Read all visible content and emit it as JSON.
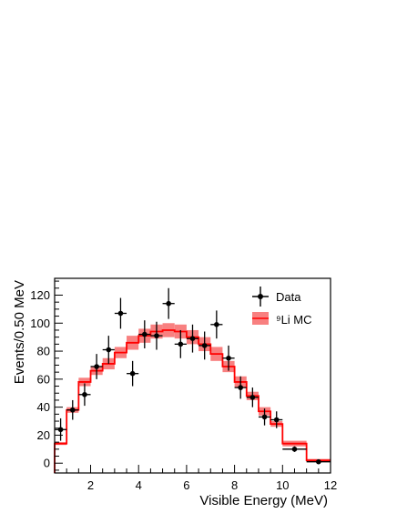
{
  "chart_data": {
    "type": "scatter",
    "xlabel": "Visible Energy (MeV)",
    "ylabel": "Events/0.50 MeV",
    "xlim": [
      0.5,
      12
    ],
    "ylim": [
      -7,
      132
    ],
    "xticks": [
      "2",
      "4",
      "6",
      "8",
      "10",
      "12"
    ],
    "yticks": [
      "0",
      "20",
      "40",
      "60",
      "80",
      "100",
      "120"
    ],
    "xtick_values": [
      2,
      4,
      6,
      8,
      10,
      12
    ],
    "ytick_values": [
      0,
      20,
      40,
      60,
      80,
      100,
      120
    ],
    "legend_position": "top-right",
    "data_series": {
      "name": "Data",
      "color": "#000000",
      "points": [
        {
          "x": 0.75,
          "y": 24,
          "err": 8
        },
        {
          "x": 1.25,
          "y": 38,
          "err": 7
        },
        {
          "x": 1.75,
          "y": 49,
          "err": 8
        },
        {
          "x": 2.25,
          "y": 69,
          "err": 9
        },
        {
          "x": 2.75,
          "y": 81,
          "err": 10
        },
        {
          "x": 3.25,
          "y": 107,
          "err": 11
        },
        {
          "x": 3.75,
          "y": 64,
          "err": 9
        },
        {
          "x": 4.25,
          "y": 92,
          "err": 10
        },
        {
          "x": 4.75,
          "y": 91,
          "err": 10
        },
        {
          "x": 5.25,
          "y": 114,
          "err": 11
        },
        {
          "x": 5.75,
          "y": 85,
          "err": 10
        },
        {
          "x": 6.25,
          "y": 89,
          "err": 10
        },
        {
          "x": 6.75,
          "y": 84,
          "err": 10
        },
        {
          "x": 7.25,
          "y": 99,
          "err": 10
        },
        {
          "x": 7.75,
          "y": 75,
          "err": 9
        },
        {
          "x": 8.25,
          "y": 54,
          "err": 8
        },
        {
          "x": 8.75,
          "y": 47,
          "err": 7
        },
        {
          "x": 9.25,
          "y": 33,
          "err": 6
        },
        {
          "x": 9.75,
          "y": 31,
          "err": 6
        },
        {
          "x": 10.5,
          "y": 10,
          "err": 2,
          "xerr": 0.5
        },
        {
          "x": 11.5,
          "y": 1,
          "err": 1,
          "xerr": 0.5
        }
      ]
    },
    "mc_series": {
      "name": "⁹Li MC",
      "line_color": "#ff0000",
      "band_color": "#f88080",
      "bins": [
        {
          "x0": 0.5,
          "x1": 1.0,
          "y": 14,
          "err": 1
        },
        {
          "x0": 1.0,
          "x1": 1.5,
          "y": 38,
          "err": 2
        },
        {
          "x0": 1.5,
          "x1": 2.0,
          "y": 58,
          "err": 3
        },
        {
          "x0": 2.0,
          "x1": 2.5,
          "y": 66,
          "err": 3
        },
        {
          "x0": 2.5,
          "x1": 3.0,
          "y": 71,
          "err": 4
        },
        {
          "x0": 3.0,
          "x1": 3.5,
          "y": 79,
          "err": 4
        },
        {
          "x0": 3.5,
          "x1": 4.0,
          "y": 86,
          "err": 5
        },
        {
          "x0": 4.0,
          "x1": 4.5,
          "y": 91,
          "err": 5
        },
        {
          "x0": 4.5,
          "x1": 5.0,
          "y": 94,
          "err": 5
        },
        {
          "x0": 5.0,
          "x1": 5.5,
          "y": 95,
          "err": 5
        },
        {
          "x0": 5.5,
          "x1": 6.0,
          "y": 94,
          "err": 5
        },
        {
          "x0": 6.0,
          "x1": 6.5,
          "y": 90,
          "err": 5
        },
        {
          "x0": 6.5,
          "x1": 7.0,
          "y": 85,
          "err": 5
        },
        {
          "x0": 7.0,
          "x1": 7.5,
          "y": 78,
          "err": 5
        },
        {
          "x0": 7.5,
          "x1": 8.0,
          "y": 69,
          "err": 4
        },
        {
          "x0": 8.0,
          "x1": 8.5,
          "y": 58,
          "err": 4
        },
        {
          "x0": 8.5,
          "x1": 9.0,
          "y": 48,
          "err": 3
        },
        {
          "x0": 9.0,
          "x1": 9.5,
          "y": 37,
          "err": 3
        },
        {
          "x0": 9.5,
          "x1": 10.0,
          "y": 28,
          "err": 2
        },
        {
          "x0": 10.0,
          "x1": 11.0,
          "y": 14,
          "err": 2
        },
        {
          "x0": 11.0,
          "x1": 12.0,
          "y": 2,
          "err": 1
        }
      ]
    }
  }
}
